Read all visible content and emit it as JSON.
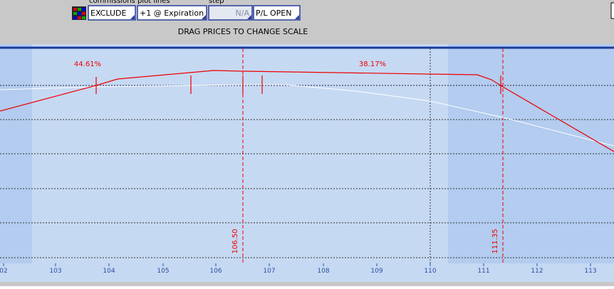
{
  "toolbar": {
    "labels": [
      "commissions",
      "plot lines",
      "step"
    ],
    "buttons": [
      "EXCLUDE",
      "+1 @ Expiration",
      "N/A",
      "P/L OPEN"
    ],
    "hint": "DRAG PRICES TO CHANGE SCALE"
  },
  "chart": {
    "annotations": [
      "44.61%",
      "38.17%"
    ],
    "markers": [
      "106.50",
      "111.35"
    ],
    "x_axis": [
      "02",
      "103",
      "104",
      "105",
      "106",
      "107",
      "108",
      "109",
      "110",
      "111",
      "112",
      "113"
    ]
  }
}
